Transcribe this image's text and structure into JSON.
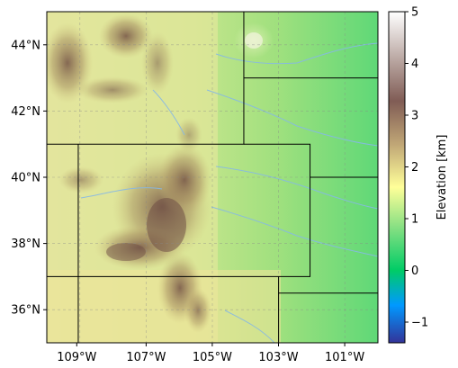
{
  "chart_data": {
    "type": "heatmap",
    "title": "",
    "x_ticks": [
      "109°W",
      "107°W",
      "105°W",
      "103°W",
      "101°W"
    ],
    "y_ticks": [
      "44°N",
      "42°N",
      "40°N",
      "38°N",
      "36°N"
    ],
    "extent": {
      "lon_min": -110.0,
      "lon_max": -100.0,
      "lat_min": 35.0,
      "lat_max": 45.0
    },
    "grid": true,
    "colorbar": {
      "label": "Elevation [km]",
      "ticks": [
        "−1",
        "0",
        "1",
        "2",
        "3",
        "4",
        "5"
      ],
      "range": [
        -1.4,
        5.0
      ],
      "colormap": "terrain"
    },
    "state_borders": [
      [
        [
          -110.0,
          41.0
        ],
        [
          -104.05,
          41.0
        ],
        [
          -104.05,
          45.0
        ]
      ],
      [
        [
          -104.05,
          43.0
        ],
        [
          -100.0,
          43.0
        ]
      ],
      [
        [
          -109.05,
          41.0
        ],
        [
          -109.05,
          35.0
        ]
      ],
      [
        [
          -110.0,
          37.0
        ],
        [
          -102.05,
          37.0
        ],
        [
          -102.05,
          41.0
        ],
        [
          -104.05,
          41.0
        ]
      ],
      [
        [
          -102.05,
          40.0
        ],
        [
          -100.0,
          40.0
        ]
      ],
      [
        [
          -103.0,
          37.0
        ],
        [
          -103.0,
          36.5
        ],
        [
          -100.0,
          36.5
        ]
      ],
      [
        [
          -103.0,
          36.5
        ],
        [
          -103.0,
          35.0
        ]
      ]
    ]
  }
}
